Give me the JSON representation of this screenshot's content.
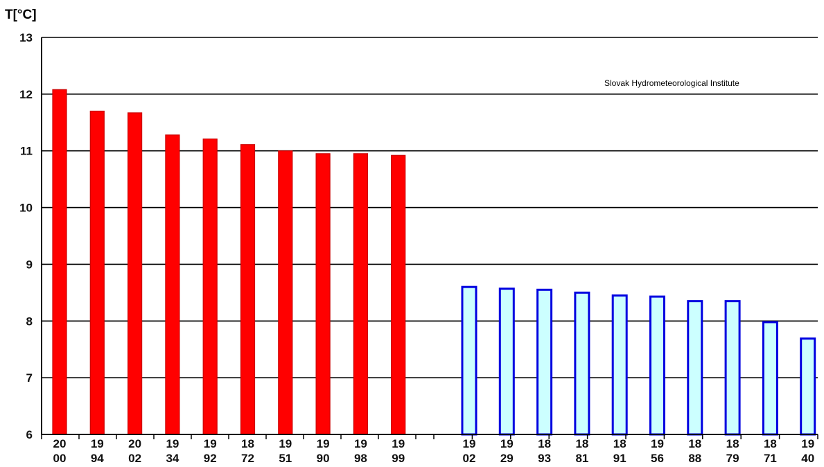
{
  "chart_data": {
    "type": "bar",
    "ylabel": "T[°C]",
    "annotation": "Slovak Hydrometeorological Institute",
    "ylim": [
      6,
      13
    ],
    "yticks": [
      "6",
      "7",
      "8",
      "9",
      "10",
      "11",
      "12",
      "13"
    ],
    "grid": true,
    "colors": {
      "warm_fill": "#ff0000",
      "warm_edge": "#cc0000",
      "cold_fill": "#ccffff",
      "cold_edge": "#0000e0"
    },
    "groups": [
      {
        "style": "warm",
        "categories": [
          [
            "20",
            "00"
          ],
          [
            "19",
            "94"
          ],
          [
            "20",
            "02"
          ],
          [
            "19",
            "34"
          ],
          [
            "19",
            "92"
          ],
          [
            "18",
            "72"
          ],
          [
            "19",
            "51"
          ],
          [
            "19",
            "90"
          ],
          [
            "19",
            "98"
          ],
          [
            "19",
            "99"
          ]
        ],
        "values": [
          12.08,
          11.7,
          11.67,
          11.28,
          11.21,
          11.11,
          11.0,
          10.95,
          10.95,
          10.92
        ]
      },
      {
        "style": "cold",
        "categories": [
          [
            "19",
            "02"
          ],
          [
            "19",
            "29"
          ],
          [
            "18",
            "93"
          ],
          [
            "18",
            "81"
          ],
          [
            "18",
            "91"
          ],
          [
            "19",
            "56"
          ],
          [
            "18",
            "88"
          ],
          [
            "18",
            "79"
          ],
          [
            "18",
            "71"
          ],
          [
            "19",
            "40"
          ]
        ],
        "values": [
          8.6,
          8.57,
          8.55,
          8.5,
          8.45,
          8.43,
          8.35,
          8.35,
          7.98,
          7.69
        ]
      }
    ]
  }
}
